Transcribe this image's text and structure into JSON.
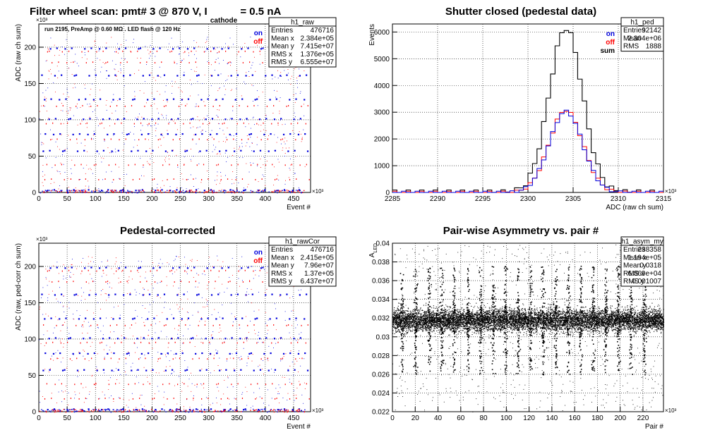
{
  "canvas_title": {
    "prefix": "Filter wheel scan: pmt#   3 @   870 V, I",
    "subscript": "cathode",
    "suffix": " = 0.5 nA"
  },
  "chart_data": [
    {
      "id": "raw",
      "type": "scatter",
      "title": "",
      "annotation": "run 2195, PreAmp @ 0.60 MΩ . LED flash @  120 Hz",
      "xlabel": "Event #",
      "ylabel": "ADC (raw ch sum)",
      "x_multiplier": "×10³",
      "y_multiplier": "×10³",
      "xlim": [
        0,
        480
      ],
      "ylim": [
        0,
        232
      ],
      "x_ticks": [
        0,
        50,
        100,
        150,
        200,
        250,
        300,
        350,
        400,
        450
      ],
      "y_ticks": [
        0,
        50,
        100,
        150,
        200
      ],
      "grid": true,
      "legend": {
        "placement": "top-right",
        "entries": [
          {
            "label": "on",
            "color": "#0000dd"
          },
          {
            "label": "off",
            "color": "#ff0000"
          }
        ]
      },
      "stats": {
        "name": "h1_raw",
        "rows": [
          [
            "Entries",
            "476716"
          ],
          [
            "Mean x",
            "2.384e+05"
          ],
          [
            "Mean y",
            "7.415e+07"
          ],
          [
            "RMS x",
            "1.376e+05"
          ],
          [
            "RMS y",
            "6.555e+07"
          ]
        ]
      },
      "point_levels_y": [
        3,
        20,
        40,
        57,
        80,
        101,
        121,
        128,
        161,
        181,
        198
      ],
      "series": [
        {
          "name": "on",
          "color": "#0000dd",
          "levels_y": [
            3,
            57,
            80,
            101,
            128,
            161,
            198
          ]
        },
        {
          "name": "off",
          "color": "#ff0000",
          "levels_y": [
            20,
            40,
            75,
            97,
            121,
            181,
            196
          ]
        }
      ]
    },
    {
      "id": "ped",
      "type": "line",
      "title": "Shutter closed (pedestal data)",
      "xlabel": "ADC (raw ch sum)",
      "ylabel": "Events",
      "x_multiplier": "×10³",
      "xlim": [
        2285,
        2315
      ],
      "ylim": [
        0,
        6300
      ],
      "x_ticks": [
        2285,
        2290,
        2295,
        2300,
        2305,
        2310,
        2315
      ],
      "y_ticks": [
        0,
        1000,
        2000,
        3000,
        4000,
        5000,
        6000
      ],
      "grid": true,
      "legend": {
        "placement": "top-right",
        "entries": [
          {
            "label": "on",
            "color": "#0000dd"
          },
          {
            "label": "off",
            "color": "#ff0000"
          },
          {
            "label": "sum",
            "color": "#000000"
          }
        ]
      },
      "stats": {
        "name": "h1_ped",
        "rows": [
          [
            "Entries",
            "92142"
          ],
          [
            "Mean",
            "2.304e+06"
          ],
          [
            "RMS",
            "1888"
          ]
        ]
      },
      "gauss": {
        "mean": 2304.2,
        "sigma": 1.85,
        "peak_sum": 6150,
        "peak_half": 3080
      }
    },
    {
      "id": "rawCor",
      "type": "scatter",
      "title": "Pedestal-corrected",
      "xlabel": "Event #",
      "ylabel": "ADC (raw, ped-corr ch sum)",
      "x_multiplier": "×10³",
      "y_multiplier": "×10³",
      "xlim": [
        0,
        480
      ],
      "ylim": [
        0,
        232
      ],
      "x_ticks": [
        0,
        50,
        100,
        150,
        200,
        250,
        300,
        350,
        400,
        450
      ],
      "y_ticks": [
        0,
        50,
        100,
        150,
        200
      ],
      "grid": true,
      "legend": {
        "placement": "top-right",
        "entries": [
          {
            "label": "on",
            "color": "#0000dd"
          },
          {
            "label": "off",
            "color": "#ff0000"
          }
        ]
      },
      "stats": {
        "name": "h1_rawCor",
        "rows": [
          [
            "Entries",
            "476716"
          ],
          [
            "Mean x",
            "2.415e+05"
          ],
          [
            "Mean y",
            "7.96e+07"
          ],
          [
            "RMS x",
            "1.37e+05"
          ],
          [
            "RMS y",
            "6.437e+07"
          ]
        ]
      },
      "series": [
        {
          "name": "on",
          "color": "#0000dd",
          "levels_y": [
            3,
            57,
            80,
            101,
            128,
            161,
            198
          ]
        },
        {
          "name": "off",
          "color": "#ff0000",
          "levels_y": [
            20,
            40,
            75,
            97,
            121,
            181,
            196
          ]
        }
      ]
    },
    {
      "id": "asym",
      "type": "scatter",
      "title": "Pair-wise Asymmetry vs. pair #",
      "xlabel": "Pair #",
      "ylabel": "A",
      "ylabel_sub": "LED",
      "x_multiplier": "×10³",
      "xlim": [
        0,
        238
      ],
      "ylim": [
        0.022,
        0.04
      ],
      "x_ticks": [
        0,
        20,
        40,
        60,
        80,
        100,
        120,
        140,
        160,
        180,
        200,
        220
      ],
      "y_ticks": [
        0.022,
        0.024,
        0.026,
        0.028,
        0.03,
        0.032,
        0.034,
        0.036,
        0.038,
        0.04
      ],
      "grid": true,
      "stats": {
        "name": "h1_asym_my",
        "rows": [
          [
            "Entries",
            "238358"
          ],
          [
            "Mean x",
            "1.194e+05"
          ],
          [
            "Mean y",
            "0.0318"
          ],
          [
            "RMS x",
            "6.869e+04"
          ],
          [
            "RMS y",
            "0.001007"
          ]
        ]
      },
      "band": {
        "center": 0.0318,
        "rms": 0.001007
      },
      "spike_x": [
        8,
        20,
        32,
        43,
        54,
        66,
        77,
        88,
        99,
        110,
        121,
        132,
        143,
        154,
        165,
        176,
        187,
        198,
        209,
        221
      ]
    }
  ]
}
